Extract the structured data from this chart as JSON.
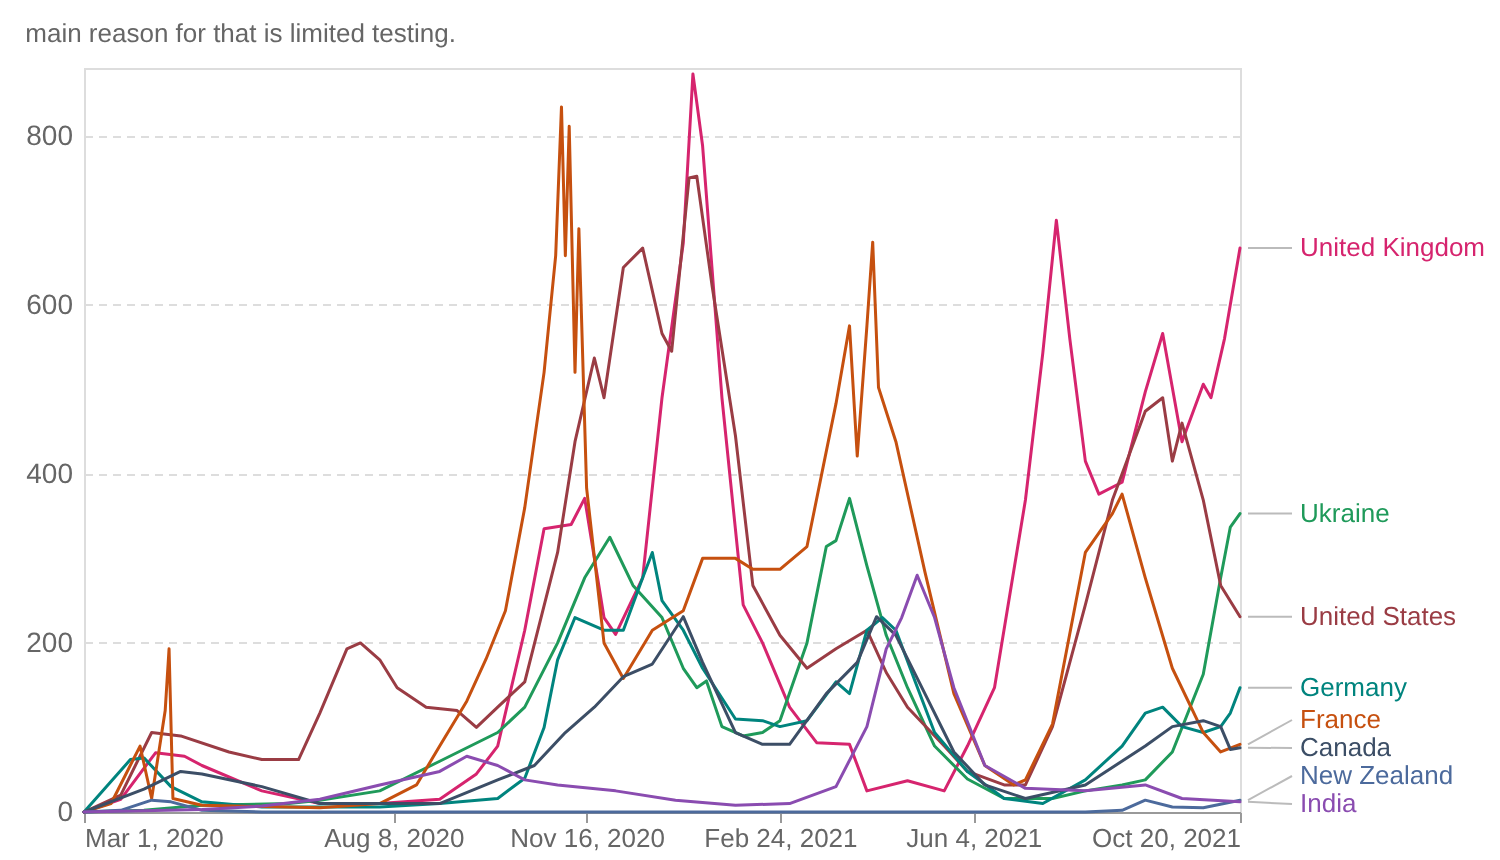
{
  "chart_data": {
    "type": "line",
    "subtitle": "main reason for that is limited testing.",
    "xlim": [
      "2020-03-01",
      "2021-10-20"
    ],
    "xticks": [
      {
        "value": "2020-03-01",
        "label": "Mar 1, 2020"
      },
      {
        "value": "2020-08-08",
        "label": "Aug 8, 2020"
      },
      {
        "value": "2020-11-16",
        "label": "Nov 16, 2020"
      },
      {
        "value": "2021-02-24",
        "label": "Feb 24, 2021"
      },
      {
        "value": "2021-06-04",
        "label": "Jun 4, 2021"
      },
      {
        "value": "2021-10-20",
        "label": "Oct 20, 2021"
      }
    ],
    "ylim": [
      0,
      880
    ],
    "yticks": [
      0,
      200,
      400,
      600,
      800
    ],
    "grid": "y",
    "legend": false,
    "line_style": "solid",
    "marker": "none",
    "series": [
      {
        "name": "United Kingdom",
        "color": "#d6246e",
        "x": [
          "2020-03-01",
          "2020-03-20",
          "2020-04-07",
          "2020-04-22",
          "2020-05-01",
          "2020-06-01",
          "2020-07-01",
          "2020-08-01",
          "2020-09-01",
          "2020-09-20",
          "2020-10-01",
          "2020-10-15",
          "2020-10-25",
          "2020-11-08",
          "2020-11-15",
          "2020-11-25",
          "2020-12-01",
          "2020-12-15",
          "2020-12-25",
          "2021-01-05",
          "2021-01-10",
          "2021-01-15",
          "2021-01-25",
          "2021-02-05",
          "2021-02-15",
          "2021-03-01",
          "2021-03-15",
          "2021-04-01",
          "2021-04-10",
          "2021-05-01",
          "2021-05-20",
          "2021-06-01",
          "2021-06-15",
          "2021-07-01",
          "2021-07-10",
          "2021-07-17",
          "2021-07-24",
          "2021-08-01",
          "2021-08-08",
          "2021-08-20",
          "2021-09-01",
          "2021-09-10",
          "2021-09-20",
          "2021-10-01",
          "2021-10-05",
          "2021-10-12",
          "2021-10-20"
        ],
        "values": [
          0,
          15,
          70,
          66,
          55,
          25,
          10,
          10,
          15,
          45,
          78,
          215,
          335,
          340,
          371,
          230,
          210,
          277,
          490,
          673,
          873,
          788,
          490,
          245,
          200,
          124,
          82,
          80,
          25,
          37,
          25,
          78,
          147,
          369,
          543,
          700,
          559,
          415,
          376,
          390,
          497,
          566,
          438,
          506,
          490,
          560,
          667
        ]
      },
      {
        "name": "Ukraine",
        "color": "#1f9a5a",
        "x": [
          "2020-03-01",
          "2020-04-01",
          "2020-05-01",
          "2020-06-15",
          "2020-07-01",
          "2020-08-01",
          "2020-09-01",
          "2020-10-01",
          "2020-10-15",
          "2020-11-01",
          "2020-11-15",
          "2020-11-28",
          "2020-12-10",
          "2020-12-25",
          "2021-01-05",
          "2021-01-12",
          "2021-01-17",
          "2021-01-25",
          "2021-02-05",
          "2021-02-15",
          "2021-02-24",
          "2021-03-10",
          "2021-03-20",
          "2021-03-25",
          "2021-04-01",
          "2021-04-10",
          "2021-04-20",
          "2021-05-01",
          "2021-05-15",
          "2021-06-01",
          "2021-06-20",
          "2021-07-15",
          "2021-08-01",
          "2021-08-20",
          "2021-09-01",
          "2021-09-15",
          "2021-10-01",
          "2021-10-10",
          "2021-10-15",
          "2021-10-20"
        ],
        "values": [
          0,
          2,
          8,
          10,
          14,
          25,
          60,
          94,
          124,
          200,
          277,
          325,
          268,
          230,
          170,
          147,
          155,
          101,
          90,
          94,
          108,
          200,
          314,
          321,
          371,
          291,
          209,
          147,
          78,
          39,
          16,
          16,
          25,
          32,
          38,
          71,
          163,
          277,
          337,
          353
        ]
      },
      {
        "name": "United States",
        "color": "#9a3c44",
        "x": [
          "2020-03-01",
          "2020-03-20",
          "2020-04-05",
          "2020-04-20",
          "2020-05-15",
          "2020-06-01",
          "2020-06-20",
          "2020-07-01",
          "2020-07-15",
          "2020-07-22",
          "2020-08-01",
          "2020-08-10",
          "2020-08-25",
          "2020-09-10",
          "2020-09-20",
          "2020-10-01",
          "2020-10-15",
          "2020-11-01",
          "2020-11-10",
          "2020-11-20",
          "2020-11-25",
          "2020-12-05",
          "2020-12-15",
          "2020-12-25",
          "2020-12-30",
          "2021-01-08",
          "2021-01-12",
          "2021-01-20",
          "2021-02-01",
          "2021-02-10",
          "2021-02-24",
          "2021-03-10",
          "2021-03-25",
          "2021-04-10",
          "2021-04-20",
          "2021-05-01",
          "2021-05-20",
          "2021-06-01",
          "2021-06-20",
          "2021-07-01",
          "2021-07-15",
          "2021-08-01",
          "2021-08-15",
          "2021-09-01",
          "2021-09-10",
          "2021-09-15",
          "2021-09-20",
          "2021-10-01",
          "2021-10-10",
          "2021-10-20"
        ],
        "values": [
          0,
          20,
          94,
          90,
          71,
          62,
          62,
          117,
          193,
          200,
          180,
          147,
          124,
          120,
          100,
          124,
          154,
          307,
          438,
          537,
          490,
          644,
          667,
          566,
          545,
          750,
          752,
          621,
          445,
          268,
          209,
          170,
          193,
          215,
          165,
          124,
          78,
          48,
          32,
          32,
          101,
          245,
          369,
          474,
          490,
          415,
          460,
          369,
          268,
          231
        ]
      },
      {
        "name": "Germany",
        "color": "#00847e",
        "x": [
          "2020-03-01",
          "2020-03-25",
          "2020-04-01",
          "2020-04-15",
          "2020-05-01",
          "2020-06-01",
          "2020-08-01",
          "2020-09-01",
          "2020-10-01",
          "2020-10-15",
          "2020-10-25",
          "2020-11-01",
          "2020-11-10",
          "2020-11-25",
          "2020-12-05",
          "2020-12-15",
          "2020-12-20",
          "2020-12-25",
          "2021-01-05",
          "2021-01-15",
          "2021-02-01",
          "2021-02-15",
          "2021-02-24",
          "2021-03-10",
          "2021-03-25",
          "2021-04-01",
          "2021-04-10",
          "2021-04-18",
          "2021-04-25",
          "2021-05-05",
          "2021-05-15",
          "2021-06-01",
          "2021-06-20",
          "2021-07-10",
          "2021-08-01",
          "2021-08-20",
          "2021-09-01",
          "2021-09-10",
          "2021-09-20",
          "2021-10-01",
          "2021-10-10",
          "2021-10-15",
          "2021-10-20"
        ],
        "values": [
          0,
          62,
          64,
          30,
          12,
          6,
          6,
          10,
          16,
          40,
          100,
          180,
          230,
          215,
          215,
          277,
          307,
          250,
          215,
          170,
          110,
          108,
          101,
          108,
          154,
          140,
          215,
          230,
          215,
          154,
          94,
          48,
          16,
          10,
          38,
          78,
          117,
          124,
          101,
          94,
          101,
          117,
          147
        ]
      },
      {
        "name": "France",
        "color": "#c6500f",
        "x": [
          "2020-03-01",
          "2020-03-15",
          "2020-03-30",
          "2020-04-05",
          "2020-04-12",
          "2020-04-14",
          "2020-04-16",
          "2020-05-01",
          "2020-07-01",
          "2020-08-01",
          "2020-08-20",
          "2020-09-01",
          "2020-09-15",
          "2020-09-25",
          "2020-10-05",
          "2020-10-15",
          "2020-10-25",
          "2020-10-31",
          "2020-11-03",
          "2020-11-05",
          "2020-11-07",
          "2020-11-10",
          "2020-11-12",
          "2020-11-16",
          "2020-11-25",
          "2020-12-05",
          "2020-12-20",
          "2021-01-05",
          "2021-01-15",
          "2021-02-01",
          "2021-02-10",
          "2021-02-24",
          "2021-03-10",
          "2021-03-25",
          "2021-04-01",
          "2021-04-05",
          "2021-04-10",
          "2021-04-13",
          "2021-04-16",
          "2021-04-25",
          "2021-05-10",
          "2021-05-25",
          "2021-06-10",
          "2021-06-25",
          "2021-07-01",
          "2021-07-15",
          "2021-08-01",
          "2021-08-15",
          "2021-08-20",
          "2021-09-01",
          "2021-09-15",
          "2021-10-01",
          "2021-10-10",
          "2021-10-20"
        ],
        "values": [
          0,
          10,
          78,
          16,
          120,
          193,
          16,
          8,
          5,
          10,
          32,
          78,
          131,
          181,
          238,
          360,
          520,
          658,
          834,
          658,
          811,
          520,
          690,
          383,
          200,
          158,
          215,
          238,
          300,
          300,
          287,
          287,
          314,
          483,
          575,
          421,
          575,
          674,
          502,
          438,
          284,
          140,
          55,
          32,
          38,
          104,
          307,
          353,
          376,
          277,
          170,
          94,
          71,
          80
        ]
      },
      {
        "name": "Canada",
        "color": "#3c4e66",
        "x": [
          "2020-03-01",
          "2020-04-01",
          "2020-04-20",
          "2020-05-01",
          "2020-06-01",
          "2020-07-01",
          "2020-08-01",
          "2020-09-01",
          "2020-10-01",
          "2020-10-20",
          "2020-11-05",
          "2020-11-20",
          "2020-12-05",
          "2020-12-20",
          "2021-01-05",
          "2021-01-15",
          "2021-02-01",
          "2021-02-15",
          "2021-03-01",
          "2021-03-20",
          "2021-04-05",
          "2021-04-15",
          "2021-04-25",
          "2021-05-10",
          "2021-05-25",
          "2021-06-10",
          "2021-07-01",
          "2021-08-01",
          "2021-09-01",
          "2021-09-15",
          "2021-10-01",
          "2021-10-10",
          "2021-10-15",
          "2021-10-20"
        ],
        "values": [
          0,
          27,
          48,
          45,
          30,
          10,
          10,
          10,
          38,
          55,
          94,
          124,
          160,
          175,
          231,
          177,
          94,
          80,
          80,
          140,
          177,
          231,
          209,
          140,
          71,
          32,
          16,
          32,
          78,
          101,
          108,
          101,
          74,
          76
        ]
      },
      {
        "name": "New Zealand",
        "color": "#4c6a9c",
        "x": [
          "2020-03-01",
          "2020-03-20",
          "2020-04-05",
          "2020-04-15",
          "2020-05-01",
          "2020-06-01",
          "2021-08-01",
          "2021-08-20",
          "2021-09-01",
          "2021-09-15",
          "2021-10-01",
          "2021-10-20"
        ],
        "values": [
          0,
          2,
          14,
          12,
          2,
          0,
          0,
          2,
          14,
          6,
          5,
          14
        ]
      },
      {
        "name": "India",
        "color": "#8a4cb0",
        "x": [
          "2020-03-01",
          "2020-05-01",
          "2020-06-01",
          "2020-07-01",
          "2020-08-01",
          "2020-09-01",
          "2020-09-15",
          "2020-10-01",
          "2020-10-15",
          "2020-11-01",
          "2020-12-01",
          "2021-01-01",
          "2021-02-01",
          "2021-03-01",
          "2021-03-25",
          "2021-04-10",
          "2021-04-20",
          "2021-04-28",
          "2021-05-06",
          "2021-05-15",
          "2021-05-25",
          "2021-06-10",
          "2021-07-01",
          "2021-08-01",
          "2021-09-01",
          "2021-09-20",
          "2021-10-20"
        ],
        "values": [
          0,
          3,
          7,
          15,
          32,
          48,
          66,
          55,
          38,
          32,
          25,
          14,
          8,
          10,
          30,
          101,
          193,
          230,
          280,
          230,
          147,
          55,
          28,
          25,
          32,
          16,
          12
        ]
      }
    ]
  }
}
